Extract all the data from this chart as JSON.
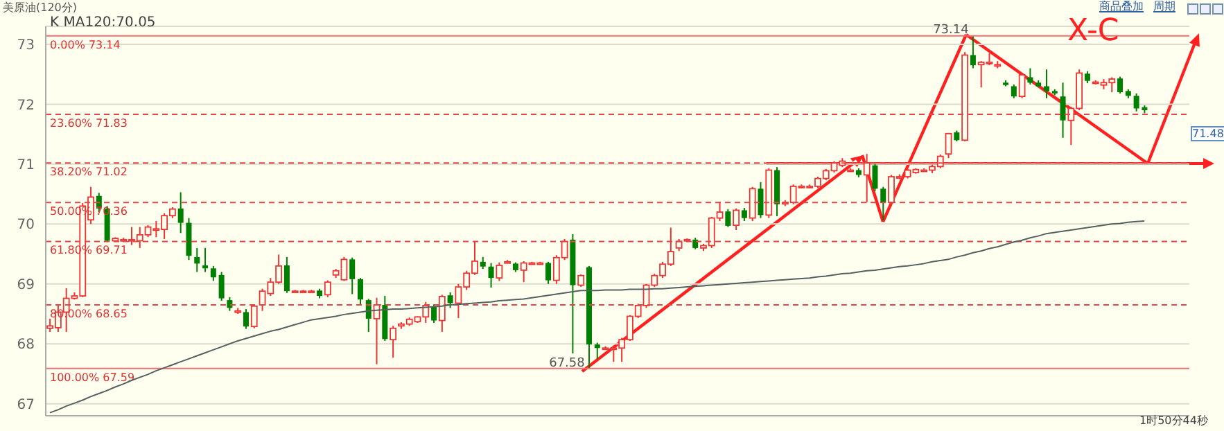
{
  "chart_data": {
    "type": "candlestick",
    "title": "美原油(120分)",
    "categories": [
      null,
      null,
      null,
      null,
      null,
      null,
      null,
      null,
      null,
      null,
      null,
      null,
      null,
      null,
      null,
      null,
      null,
      null,
      null,
      null,
      null,
      null,
      null,
      null,
      null,
      null,
      null,
      null,
      null,
      null,
      null,
      null,
      null,
      null,
      null,
      null,
      null,
      null,
      null,
      null,
      null,
      null,
      null,
      null,
      null,
      null,
      null,
      null,
      null,
      null,
      null,
      null,
      null,
      null,
      null,
      null,
      null,
      null,
      null,
      null,
      null,
      null,
      null,
      null,
      null,
      null,
      null,
      null,
      null,
      null,
      null,
      null,
      null,
      null,
      null,
      null,
      null,
      null,
      null,
      null,
      null,
      null,
      null,
      null,
      null,
      null,
      null,
      null,
      null,
      null,
      null,
      null,
      null,
      null,
      null,
      null,
      null,
      null,
      null,
      null,
      null,
      null,
      null,
      null,
      null,
      null,
      null,
      null,
      null,
      null,
      null,
      null,
      null,
      null,
      null,
      null,
      null,
      null,
      null,
      null,
      null,
      null,
      null,
      null,
      null,
      null,
      null,
      null,
      null,
      null,
      null,
      null,
      null,
      null,
      null,
      null,
      null,
      null,
      null,
      null
    ],
    "ohlc": [
      [
        68.26,
        68.42,
        68.2,
        68.3
      ],
      [
        68.27,
        68.65,
        68.2,
        68.53
      ],
      [
        68.53,
        68.93,
        68.2,
        68.76
      ],
      [
        68.76,
        68.86,
        68.74,
        68.8
      ],
      [
        68.8,
        70.35,
        68.78,
        70.3
      ],
      [
        70.07,
        70.62,
        70.0,
        70.45
      ],
      [
        70.47,
        70.52,
        70.2,
        70.26
      ],
      [
        70.26,
        70.3,
        69.7,
        69.72
      ],
      [
        69.72,
        69.78,
        69.7,
        69.76
      ],
      [
        69.74,
        69.77,
        69.7,
        69.74
      ],
      [
        69.74,
        69.95,
        69.65,
        69.74
      ],
      [
        69.72,
        69.95,
        69.6,
        69.82
      ],
      [
        69.82,
        69.98,
        69.78,
        69.95
      ],
      [
        69.92,
        70.05,
        69.78,
        69.92
      ],
      [
        69.91,
        70.18,
        69.75,
        70.14
      ],
      [
        70.14,
        70.28,
        70.1,
        70.25
      ],
      [
        70.26,
        70.53,
        69.85,
        70.02
      ],
      [
        70.02,
        70.1,
        69.4,
        69.47
      ],
      [
        69.45,
        69.6,
        69.2,
        69.34
      ],
      [
        69.31,
        69.6,
        69.2,
        69.26
      ],
      [
        69.26,
        69.3,
        69.05,
        69.11
      ],
      [
        69.15,
        69.2,
        68.72,
        68.76
      ],
      [
        68.73,
        68.78,
        68.55,
        68.6
      ],
      [
        68.55,
        68.6,
        68.5,
        68.55
      ],
      [
        68.53,
        68.58,
        68.25,
        68.29
      ],
      [
        68.29,
        68.66,
        68.26,
        68.63
      ],
      [
        68.65,
        68.92,
        68.55,
        68.88
      ],
      [
        68.84,
        69.1,
        68.8,
        69.03
      ],
      [
        69.03,
        69.49,
        69.0,
        69.3
      ],
      [
        69.31,
        69.45,
        68.85,
        68.88
      ],
      [
        68.88,
        68.9,
        68.86,
        68.88
      ],
      [
        68.88,
        68.9,
        68.86,
        68.88
      ],
      [
        68.88,
        68.9,
        68.86,
        68.88
      ],
      [
        68.89,
        68.92,
        68.76,
        68.8
      ],
      [
        68.82,
        69.06,
        68.78,
        69.03
      ],
      [
        69.15,
        69.25,
        69.1,
        69.22
      ],
      [
        69.07,
        69.45,
        69.05,
        69.41
      ],
      [
        69.41,
        69.44,
        68.83,
        69.08
      ],
      [
        69.08,
        69.1,
        68.64,
        68.74
      ],
      [
        68.73,
        68.75,
        68.2,
        68.42
      ],
      [
        68.42,
        68.77,
        67.66,
        68.65
      ],
      [
        68.65,
        68.8,
        68.05,
        68.08
      ],
      [
        68.07,
        68.3,
        67.77,
        68.26
      ],
      [
        68.3,
        68.36,
        68.25,
        68.33
      ],
      [
        68.33,
        68.44,
        68.3,
        68.41
      ],
      [
        68.37,
        68.46,
        68.35,
        68.45
      ],
      [
        68.45,
        68.7,
        68.35,
        68.64
      ],
      [
        68.62,
        68.66,
        68.35,
        68.39
      ],
      [
        68.39,
        68.82,
        68.2,
        68.79
      ],
      [
        68.81,
        68.86,
        68.6,
        68.68
      ],
      [
        68.68,
        69.0,
        68.43,
        68.95
      ],
      [
        68.95,
        69.22,
        68.9,
        69.18
      ],
      [
        69.18,
        69.71,
        69.15,
        69.38
      ],
      [
        69.37,
        69.45,
        69.25,
        69.29
      ],
      [
        69.29,
        69.35,
        68.94,
        69.1
      ],
      [
        69.1,
        69.36,
        69.05,
        69.31
      ],
      [
        69.37,
        69.4,
        69.35,
        69.37
      ],
      [
        69.34,
        69.36,
        69.2,
        69.23
      ],
      [
        69.23,
        69.38,
        69.03,
        69.35
      ],
      [
        69.35,
        69.37,
        69.33,
        69.35
      ],
      [
        69.35,
        69.37,
        69.33,
        69.35
      ],
      [
        69.35,
        69.37,
        69.0,
        69.06
      ],
      [
        69.06,
        69.48,
        69.0,
        69.44
      ],
      [
        69.44,
        69.75,
        69.4,
        69.71
      ],
      [
        69.74,
        69.83,
        67.84,
        68.98
      ],
      [
        68.98,
        69.16,
        68.95,
        69.14
      ],
      [
        69.28,
        69.3,
        67.58,
        67.99
      ],
      [
        67.99,
        68.02,
        67.75,
        67.93
      ],
      [
        67.93,
        67.96,
        67.9,
        67.93
      ],
      [
        67.93,
        67.97,
        67.7,
        67.93
      ],
      [
        67.93,
        68.1,
        67.7,
        68.07
      ],
      [
        68.07,
        68.48,
        68.05,
        68.46
      ],
      [
        68.46,
        68.67,
        68.43,
        68.64
      ],
      [
        68.64,
        69.0,
        68.6,
        68.98
      ],
      [
        68.98,
        69.17,
        68.95,
        69.14
      ],
      [
        69.14,
        69.37,
        69.1,
        69.33
      ],
      [
        69.33,
        69.94,
        69.3,
        69.54
      ],
      [
        69.6,
        69.75,
        69.55,
        69.71
      ],
      [
        69.72,
        69.76,
        69.7,
        69.74
      ],
      [
        69.74,
        69.77,
        69.58,
        69.6
      ],
      [
        69.6,
        69.67,
        69.55,
        69.64
      ],
      [
        69.64,
        70.12,
        69.6,
        70.1
      ],
      [
        70.1,
        70.37,
        70.05,
        70.2
      ],
      [
        70.21,
        70.25,
        69.95,
        69.97
      ],
      [
        69.98,
        70.26,
        69.9,
        70.23
      ],
      [
        70.23,
        70.27,
        70.05,
        70.1
      ],
      [
        70.1,
        70.62,
        70.05,
        70.59
      ],
      [
        70.59,
        70.7,
        70.1,
        70.15
      ],
      [
        70.15,
        70.93,
        70.1,
        70.9
      ],
      [
        70.9,
        70.95,
        70.13,
        70.33
      ],
      [
        70.36,
        70.4,
        70.3,
        70.36
      ],
      [
        70.36,
        70.66,
        70.33,
        70.63
      ],
      [
        70.63,
        70.66,
        70.6,
        70.63
      ],
      [
        70.63,
        70.66,
        70.6,
        70.63
      ],
      [
        70.63,
        70.79,
        70.6,
        70.76
      ],
      [
        70.76,
        70.92,
        70.73,
        70.89
      ],
      [
        70.89,
        71.05,
        70.86,
        71.02
      ],
      [
        70.98,
        71.1,
        70.95,
        71.05
      ],
      [
        70.9,
        70.93,
        70.87,
        70.9
      ],
      [
        70.9,
        70.93,
        70.78,
        70.82
      ],
      [
        70.82,
        71.17,
        70.36,
        71.02
      ],
      [
        70.98,
        71.0,
        70.55,
        70.59
      ],
      [
        70.59,
        70.62,
        70.06,
        70.36
      ],
      [
        70.36,
        70.82,
        70.3,
        70.79
      ],
      [
        70.79,
        70.83,
        70.75,
        70.79
      ],
      [
        70.79,
        70.92,
        70.76,
        70.9
      ],
      [
        70.86,
        70.93,
        70.84,
        70.91
      ],
      [
        70.9,
        70.93,
        70.87,
        70.9
      ],
      [
        70.9,
        70.99,
        70.85,
        70.96
      ],
      [
        70.96,
        71.16,
        70.93,
        71.13
      ],
      [
        71.17,
        71.52,
        71.1,
        71.51
      ],
      [
        71.53,
        71.56,
        71.38,
        71.4
      ],
      [
        71.4,
        72.87,
        71.38,
        72.82
      ],
      [
        72.82,
        73.14,
        72.6,
        72.65
      ],
      [
        72.66,
        72.72,
        72.28,
        72.7
      ],
      [
        72.7,
        72.85,
        72.65,
        72.7
      ],
      [
        72.66,
        72.72,
        72.6,
        72.66
      ],
      [
        72.36,
        72.4,
        72.3,
        72.32
      ],
      [
        72.3,
        72.33,
        72.1,
        72.13
      ],
      [
        72.13,
        72.52,
        72.1,
        72.49
      ],
      [
        72.45,
        72.6,
        72.33,
        72.36
      ],
      [
        72.36,
        72.4,
        72.28,
        72.3
      ],
      [
        72.3,
        72.58,
        72.1,
        72.22
      ],
      [
        72.22,
        72.25,
        72.15,
        72.18
      ],
      [
        72.13,
        72.36,
        71.44,
        71.73
      ],
      [
        71.73,
        71.96,
        71.32,
        71.93
      ],
      [
        71.93,
        72.58,
        71.9,
        72.52
      ],
      [
        72.51,
        72.55,
        72.35,
        72.39
      ],
      [
        72.37,
        72.4,
        72.33,
        72.37
      ],
      [
        72.32,
        72.42,
        72.25,
        72.36
      ],
      [
        72.36,
        72.45,
        72.2,
        72.42
      ],
      [
        72.43,
        72.46,
        72.18,
        72.2
      ],
      [
        72.22,
        72.25,
        72.1,
        72.14
      ],
      [
        72.14,
        72.18,
        71.88,
        71.93
      ],
      [
        71.95,
        71.98,
        71.85,
        71.9
      ],
      null,
      null,
      null,
      null,
      null
    ],
    "colors": [
      "#ee3333",
      "#ee3333",
      "#ee3333",
      "#ee3333",
      "#ee3333",
      "#ee3333",
      "#008000",
      "#008000",
      "#ee3333",
      "#ee3333",
      "#ee3333",
      "#ee3333",
      "#ee3333",
      "#ee3333",
      "#ee3333",
      "#ee3333",
      "#008000",
      "#008000",
      "#008000",
      "#008000",
      "#008000",
      "#008000",
      "#008000",
      "#ee3333",
      "#008000",
      "#ee3333",
      "#ee3333",
      "#ee3333",
      "#ee3333",
      "#008000",
      "#ee3333",
      "#ee3333",
      "#ee3333",
      "#008000",
      "#ee3333",
      "#ee3333",
      "#ee3333",
      "#008000",
      "#008000",
      "#008000",
      "#ee3333",
      "#008000",
      "#ee3333",
      "#ee3333",
      "#ee3333",
      "#ee3333",
      "#ee3333",
      "#008000",
      "#ee3333",
      "#008000",
      "#ee3333",
      "#ee3333",
      "#ee3333",
      "#008000",
      "#008000",
      "#ee3333",
      "#ee3333",
      "#008000",
      "#ee3333",
      "#ee3333",
      "#ee3333",
      "#008000",
      "#ee3333",
      "#ee3333",
      "#008000",
      "#ee3333",
      "#008000",
      "#008000",
      "#ee3333",
      "#ee3333",
      "#ee3333",
      "#ee3333",
      "#ee3333",
      "#ee3333",
      "#ee3333",
      "#ee3333",
      "#ee3333",
      "#ee3333",
      "#ee3333",
      "#008000",
      "#ee3333",
      "#ee3333",
      "#ee3333",
      "#008000",
      "#ee3333",
      "#008000",
      "#ee3333",
      "#008000",
      "#ee3333",
      "#008000",
      "#ee3333",
      "#ee3333",
      "#ee3333",
      "#ee3333",
      "#ee3333",
      "#ee3333",
      "#ee3333",
      "#ee3333",
      "#ee3333",
      "#008000",
      "#ee3333",
      "#008000",
      "#008000",
      "#ee3333",
      "#ee3333",
      "#ee3333",
      "#ee3333",
      "#ee3333",
      "#ee3333",
      "#ee3333",
      "#ee3333",
      "#008000",
      "#ee3333",
      "#008000",
      "#ee3333",
      "#ee3333",
      "#ee3333",
      "#008000",
      "#008000",
      "#ee3333",
      "#008000",
      "#008000",
      "#008000",
      "#008000",
      "#008000",
      "#ee3333",
      "#ee3333",
      "#008000",
      "#ee3333",
      "#ee3333",
      "#ee3333",
      "#008000",
      "#008000",
      "#008000",
      "#008000",
      null,
      null,
      null,
      null,
      null
    ],
    "series": [
      {
        "type": "line",
        "color": "#556060",
        "values": [
          66.85,
          66.9,
          66.96,
          67.01,
          67.06,
          67.12,
          67.17,
          67.22,
          67.28,
          67.33,
          67.39,
          67.44,
          67.49,
          67.55,
          67.6,
          67.65,
          67.7,
          67.75,
          67.8,
          67.85,
          67.9,
          67.95,
          68.0,
          68.05,
          68.09,
          68.13,
          68.17,
          68.21,
          68.24,
          68.28,
          68.32,
          68.36,
          68.4,
          68.42,
          68.44,
          68.46,
          68.49,
          68.51,
          68.53,
          68.55,
          68.56,
          68.57,
          68.58,
          68.58,
          68.59,
          68.6,
          68.61,
          68.62,
          68.63,
          68.65,
          68.66,
          68.67,
          68.68,
          68.69,
          68.7,
          68.72,
          68.73,
          68.74,
          68.75,
          68.77,
          68.79,
          68.81,
          68.83,
          68.85,
          68.87,
          68.89,
          68.89,
          68.89,
          68.9,
          68.9,
          68.9,
          68.91,
          68.91,
          68.91,
          68.92,
          68.92,
          68.93,
          68.94,
          68.95,
          68.96,
          68.97,
          68.98,
          68.99,
          69.0,
          69.01,
          69.02,
          69.03,
          69.04,
          69.05,
          69.06,
          69.07,
          69.08,
          69.09,
          69.1,
          69.12,
          69.13,
          69.15,
          69.17,
          69.18,
          69.2,
          69.22,
          69.23,
          69.25,
          69.27,
          69.29,
          69.3,
          69.32,
          69.34,
          69.37,
          69.39,
          69.41,
          69.45,
          69.48,
          69.52,
          69.55,
          69.59,
          69.62,
          69.66,
          69.7,
          69.73,
          69.77,
          69.8,
          69.84,
          69.86,
          69.88,
          69.9,
          69.92,
          69.94,
          69.96,
          69.98,
          70.0,
          70.01,
          70.03,
          70.04,
          70.05,
          null,
          null,
          null,
          null,
          null
        ]
      }
    ],
    "ylim": [
      66.8,
      73.3
    ],
    "yticks": [
      67,
      68,
      69,
      70,
      71,
      72,
      73
    ],
    "grid": "y",
    "tick_labels": "y",
    "ref_lines": [
      {
        "axis": "y",
        "value": 73.14,
        "label": "0.00% 73.14",
        "color": "#f07070",
        "line_style": "solid"
      },
      {
        "axis": "y",
        "value": 71.83,
        "label": "23.60% 71.83",
        "color": "#e04848",
        "line_style": "dashed"
      },
      {
        "axis": "y",
        "value": 71.02,
        "label": "38.20% 71.02",
        "color": "#e04848",
        "line_style": "dashed"
      },
      {
        "axis": "y",
        "value": 70.36,
        "label": "50.00% 70.36",
        "color": "#e04848",
        "line_style": "dashed"
      },
      {
        "axis": "y",
        "value": 69.71,
        "label": "61.80% 69.71",
        "color": "#e04848",
        "line_style": "dashed"
      },
      {
        "axis": "y",
        "value": 68.65,
        "label": "80.00% 68.65",
        "color": "#e04848",
        "line_style": "dashed"
      },
      {
        "axis": "y",
        "value": 67.59,
        "label": "100.00% 67.59",
        "color": "#f07070",
        "line_style": "solid"
      }
    ],
    "annotations": [
      "K  MA120:70.05",
      "商品叠加",
      "周期",
      "X-C",
      "1时50分44秒",
      {
        "text": "73.14",
        "y": 73.14
      },
      {
        "text": "67.58",
        "y": 67.58
      },
      {
        "text": "71.48",
        "y": 71.48
      }
    ]
  }
}
